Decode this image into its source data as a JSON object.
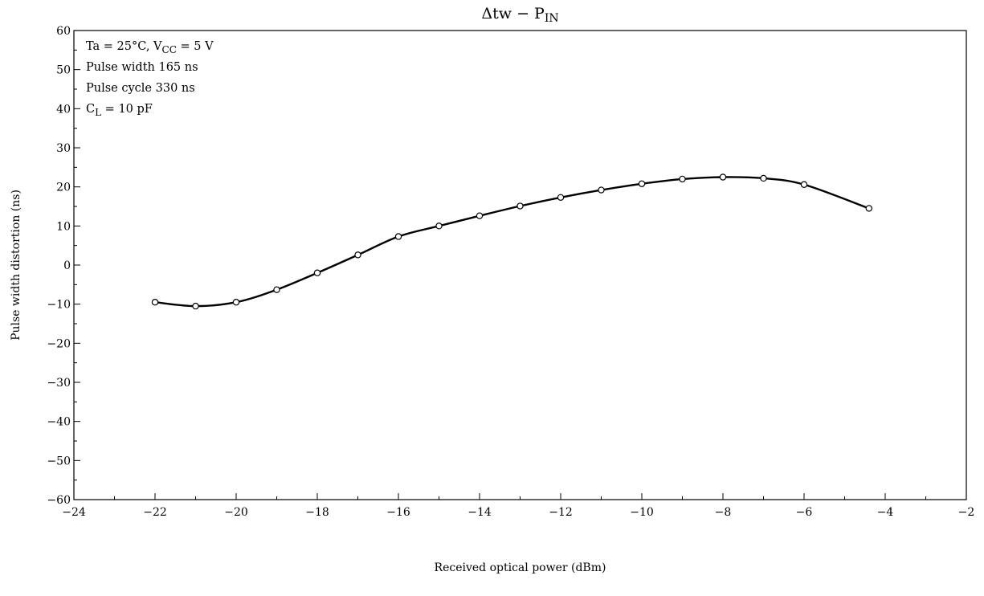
{
  "chart_data": {
    "type": "line",
    "title": "Δtw − PIN",
    "title_parts": {
      "main": "Δtw − P",
      "sub": "IN"
    },
    "xlabel": "Received optical power   (dBm)",
    "ylabel": "Pulse width distortion   (ns)",
    "xlim": [
      -24,
      -2
    ],
    "ylim": [
      -60,
      60
    ],
    "x_ticks": [
      -24,
      -22,
      -20,
      -18,
      -16,
      -14,
      -12,
      -10,
      -8,
      -6,
      -4,
      -2
    ],
    "x_tick_labels": [
      "−24",
      "−22",
      "−20",
      "−18",
      "−16",
      "−14",
      "−12",
      "−10",
      "−8",
      "−6",
      "−4",
      "−2"
    ],
    "y_ticks": [
      60,
      50,
      40,
      30,
      20,
      10,
      0,
      -10,
      -20,
      -30,
      -40,
      -50,
      -60
    ],
    "y_tick_labels": [
      "60",
      "50",
      "40",
      "30",
      "20",
      "10",
      "0",
      "−10",
      "−20",
      "−30",
      "−40",
      "−50",
      "−60"
    ],
    "grid": false,
    "annotations": [
      {
        "parts": [
          {
            "t": "Ta = 25°C, V"
          },
          {
            "t": "CC",
            "sub": true
          },
          {
            "t": " = 5 V"
          }
        ]
      },
      {
        "parts": [
          {
            "t": "Pulse width 165 ns"
          }
        ]
      },
      {
        "parts": [
          {
            "t": "Pulse cycle 330 ns"
          }
        ]
      },
      {
        "parts": [
          {
            "t": "C"
          },
          {
            "t": "L",
            "sub": true
          },
          {
            "t": " = 10 pF"
          }
        ]
      }
    ],
    "annotation_position": "top-left",
    "series": [
      {
        "marker": "open-circle",
        "x": [
          -22,
          -21,
          -20,
          -19,
          -18,
          -17,
          -16,
          -15,
          -14,
          -13,
          -12,
          -11,
          -10,
          -9,
          -8,
          -7,
          -6,
          -4.4
        ],
        "y": [
          -9.5,
          -10.5,
          -9.5,
          -6.3,
          -2,
          2.6,
          7.3,
          10,
          12.6,
          15.1,
          17.3,
          19.2,
          20.8,
          22,
          22.5,
          22.2,
          20.6,
          14.5
        ]
      }
    ]
  }
}
